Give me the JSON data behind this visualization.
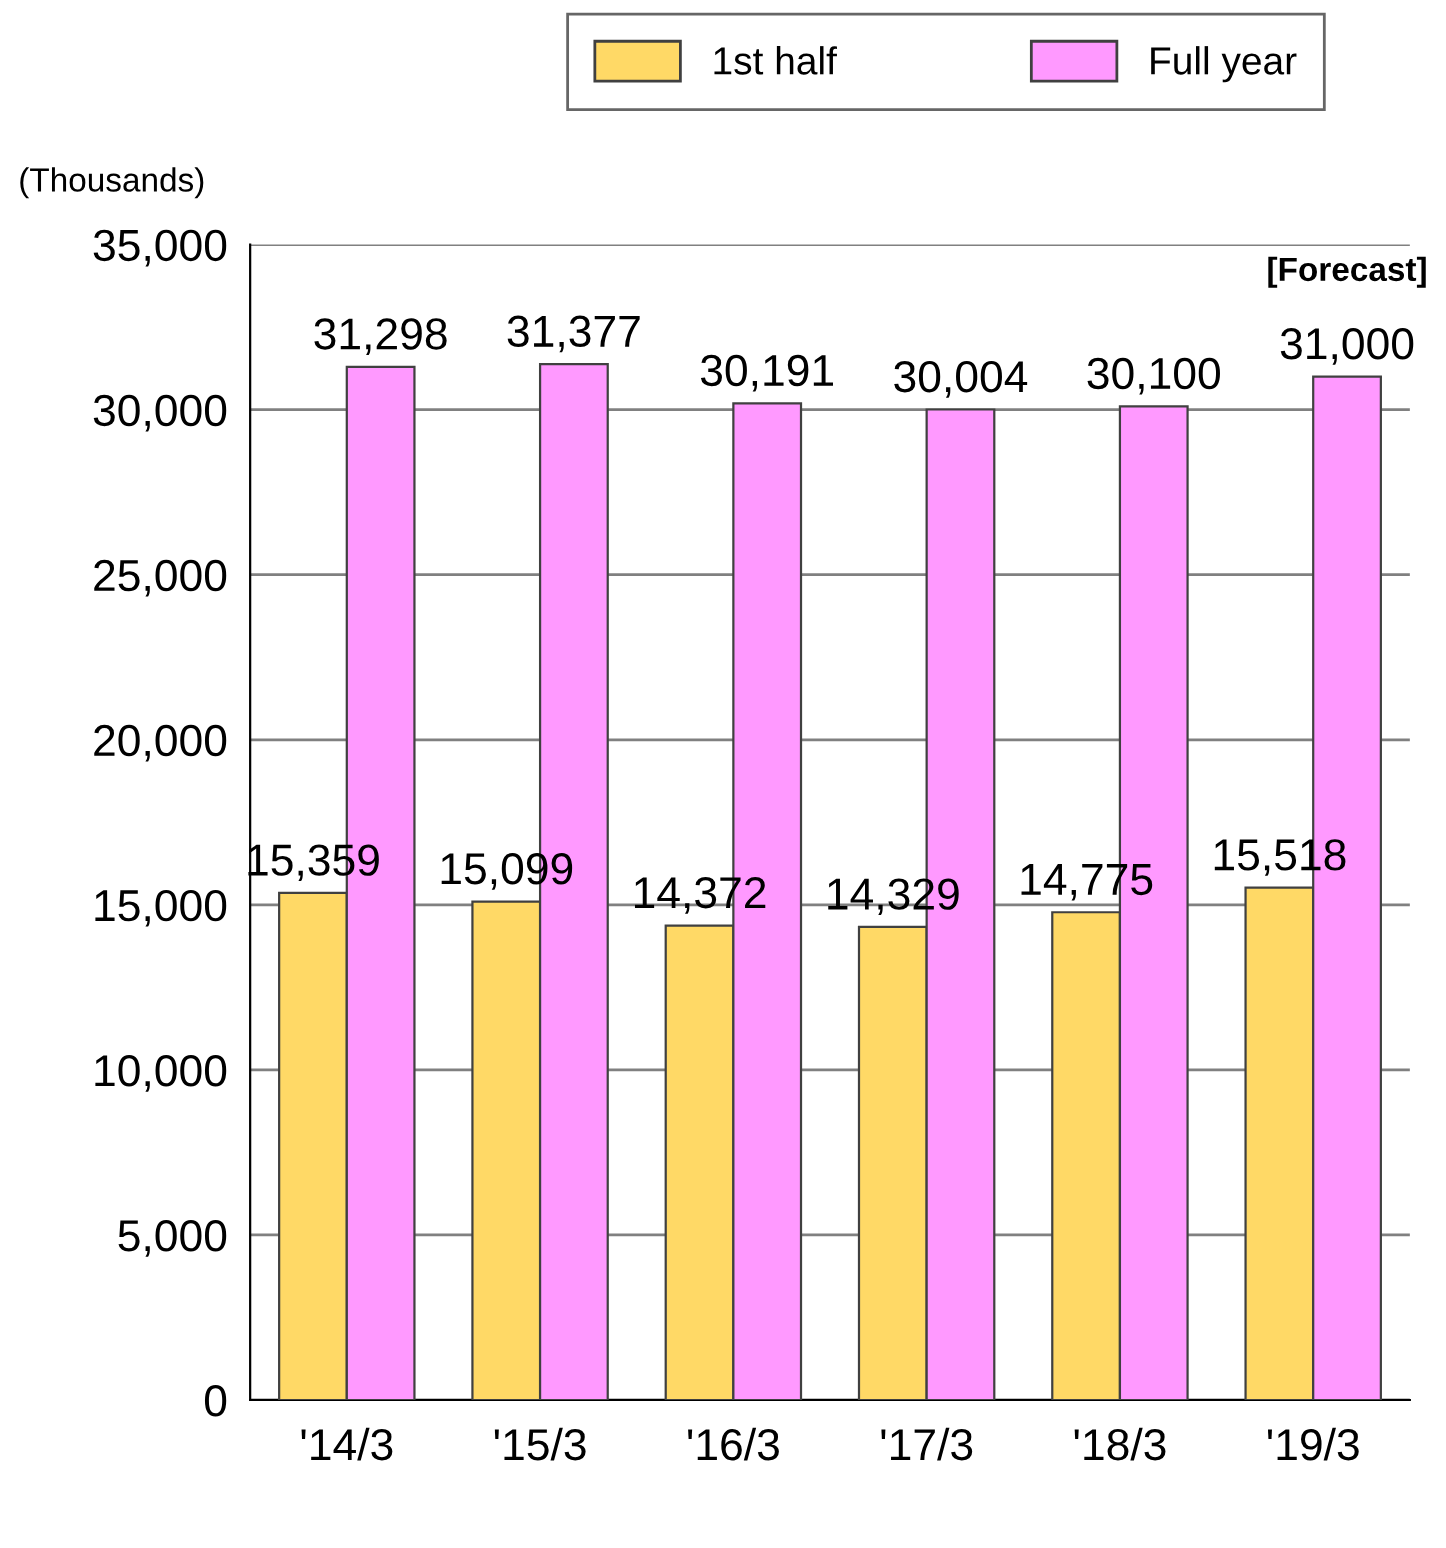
{
  "chart_data": {
    "type": "bar",
    "ylabel": "(Thousands)",
    "categories": [
      "'14/3",
      "'15/3",
      "'16/3",
      "'17/3",
      "'18/3",
      "'19/3"
    ],
    "series": [
      {
        "name": "1st half",
        "color": "#ffd966",
        "values": [
          15359,
          15099,
          14372,
          14329,
          14775,
          15518
        ],
        "value_labels": [
          "15,359",
          "15,099",
          "14,372",
          "14,329",
          "14,775",
          "15,518"
        ]
      },
      {
        "name": "Full year",
        "color": "#ff99ff",
        "values": [
          31298,
          31377,
          30191,
          30004,
          30100,
          31000
        ],
        "value_labels": [
          "31,298",
          "31,377",
          "30,191",
          "30,004",
          "30,100",
          "31,000"
        ]
      }
    ],
    "ylim": [
      0,
      35000
    ],
    "yticks": [
      {
        "value": 0,
        "label": "0"
      },
      {
        "value": 5000,
        "label": "5,000"
      },
      {
        "value": 10000,
        "label": "10,000"
      },
      {
        "value": 15000,
        "label": "15,000"
      },
      {
        "value": 20000,
        "label": "20,000"
      },
      {
        "value": 25000,
        "label": "25,000"
      },
      {
        "value": 30000,
        "label": "30,000"
      },
      {
        "value": 35000,
        "label": "35,000"
      }
    ],
    "grid": "y",
    "legend": "top",
    "annotations": [
      {
        "text": "[Forecast]",
        "x": "'19/3",
        "y": 31000
      }
    ]
  }
}
